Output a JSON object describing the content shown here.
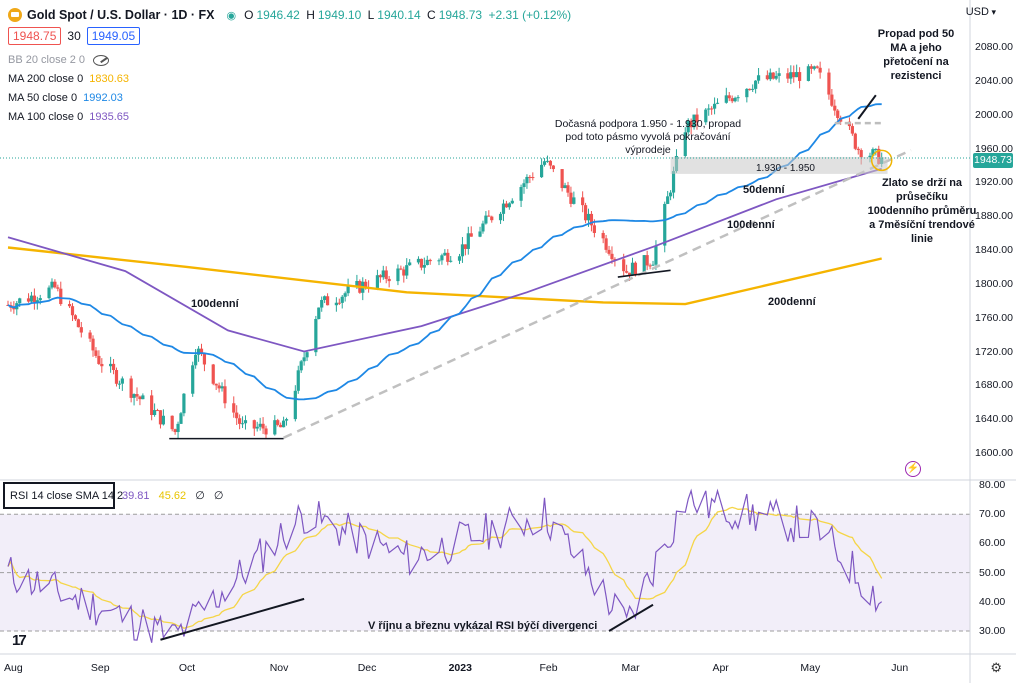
{
  "header": {
    "symbol": "Gold Spot / U.S. Dollar · 1D · FX",
    "open": "1946.42",
    "high": "1949.10",
    "low": "1940.14",
    "close": "1948.73",
    "change": "+2.31 (+0.12%)",
    "o_label": "O",
    "h_label": "H",
    "l_label": "L",
    "c_label": "C"
  },
  "quote": {
    "bid": "1948.75",
    "spread": "30",
    "ask": "1949.05"
  },
  "indicators": [
    {
      "label": "BB 20 close 2 0",
      "value": ""
    },
    {
      "label": "MA 200 close 0",
      "value": "1830.63",
      "color": "#f5b400"
    },
    {
      "label": "MA 50 close 0",
      "value": "1992.03",
      "color": "#1e88e5"
    },
    {
      "label": "MA 100 close 0",
      "value": "1935.65",
      "color": "#7e57c2"
    }
  ],
  "rsi_box": {
    "label": "RSI 14 close SMA 14 2",
    "rsi": "39.81",
    "sma": "45.62",
    "n1": "∅",
    "n2": "∅"
  },
  "currency": "USD",
  "last_price": "1948.73",
  "price_axis": [
    "2080.00",
    "2040.00",
    "2000.00",
    "1960.00",
    "1920.00",
    "1880.00",
    "1840.00",
    "1800.00",
    "1760.00",
    "1720.00",
    "1680.00",
    "1640.00",
    "1600.00"
  ],
  "rsi_axis": [
    "80.00",
    "70.00",
    "60.00",
    "50.00",
    "40.00",
    "30.00"
  ],
  "time_axis": [
    "Aug",
    "Sep",
    "Oct",
    "Nov",
    "Dec",
    "2023",
    "Feb",
    "Mar",
    "Apr",
    "May",
    "Jun"
  ],
  "annotations": {
    "propad": "Propad pod 50 MA a jeho přetočení na rezistenci",
    "support": "Dočasná podpora 1.950 - 1.930, propad pod toto pásmo vyvolá pokračování výprodeje",
    "zone": "1.930 - 1.950",
    "ma50": "50denní",
    "ma100_right": "100denní",
    "ma100_left": "100denní",
    "ma200": "200denní",
    "zlato": "Zlato se drží na průsečíku 100denního průměru a 7měsíční trendové linie",
    "rsi_div": "V říjnu a březnu vykázal RSI býčí divergenci"
  },
  "colors": {
    "up": "#26a69a",
    "down": "#ef5350",
    "ma200": "#f5b400",
    "ma50": "#1e88e5",
    "ma100": "#7e57c2",
    "rsi": "#7e57c2",
    "rsi_sma": "#f5d547"
  },
  "chart_data": [
    {
      "type": "candlestick",
      "title": "Gold Spot / U.S. Dollar · 1D · FX",
      "x_range": [
        "2022-08-01",
        "2023-06-20"
      ],
      "ylim": [
        1590,
        2100
      ],
      "key_points": [
        {
          "x": "2022-08-01",
          "close": 1775
        },
        {
          "x": "2022-08-17",
          "close": 1795
        },
        {
          "x": "2022-09-01",
          "close": 1710
        },
        {
          "x": "2022-09-27",
          "close": 1625
        },
        {
          "x": "2022-10-04",
          "close": 1725
        },
        {
          "x": "2022-10-20",
          "close": 1630
        },
        {
          "x": "2022-11-03",
          "close": 1630
        },
        {
          "x": "2022-11-15",
          "close": 1775
        },
        {
          "x": "2022-12-01",
          "close": 1800
        },
        {
          "x": "2023-01-02",
          "close": 1840
        },
        {
          "x": "2023-01-31",
          "close": 1945
        },
        {
          "x": "2023-02-28",
          "close": 1815
        },
        {
          "x": "2023-03-09",
          "close": 1830
        },
        {
          "x": "2023-03-20",
          "close": 1985
        },
        {
          "x": "2023-04-04",
          "close": 2020
        },
        {
          "x": "2023-04-13",
          "close": 2040
        },
        {
          "x": "2023-05-04",
          "close": 2050
        },
        {
          "x": "2023-05-18",
          "close": 1960
        },
        {
          "x": "2023-05-26",
          "close": 1948
        }
      ]
    },
    {
      "type": "line",
      "title": "RSI 14 close SMA 14 2",
      "ylim": [
        25,
        82
      ],
      "key_points": [
        {
          "x": "2022-08-01",
          "y": 50
        },
        {
          "x": "2022-09-27",
          "y": 28
        },
        {
          "x": "2022-11-10",
          "y": 70
        },
        {
          "x": "2022-12-15",
          "y": 55
        },
        {
          "x": "2023-01-31",
          "y": 70
        },
        {
          "x": "2023-02-28",
          "y": 32
        },
        {
          "x": "2023-03-20",
          "y": 75
        },
        {
          "x": "2023-05-04",
          "y": 65
        },
        {
          "x": "2023-05-26",
          "y": 40
        }
      ]
    }
  ]
}
